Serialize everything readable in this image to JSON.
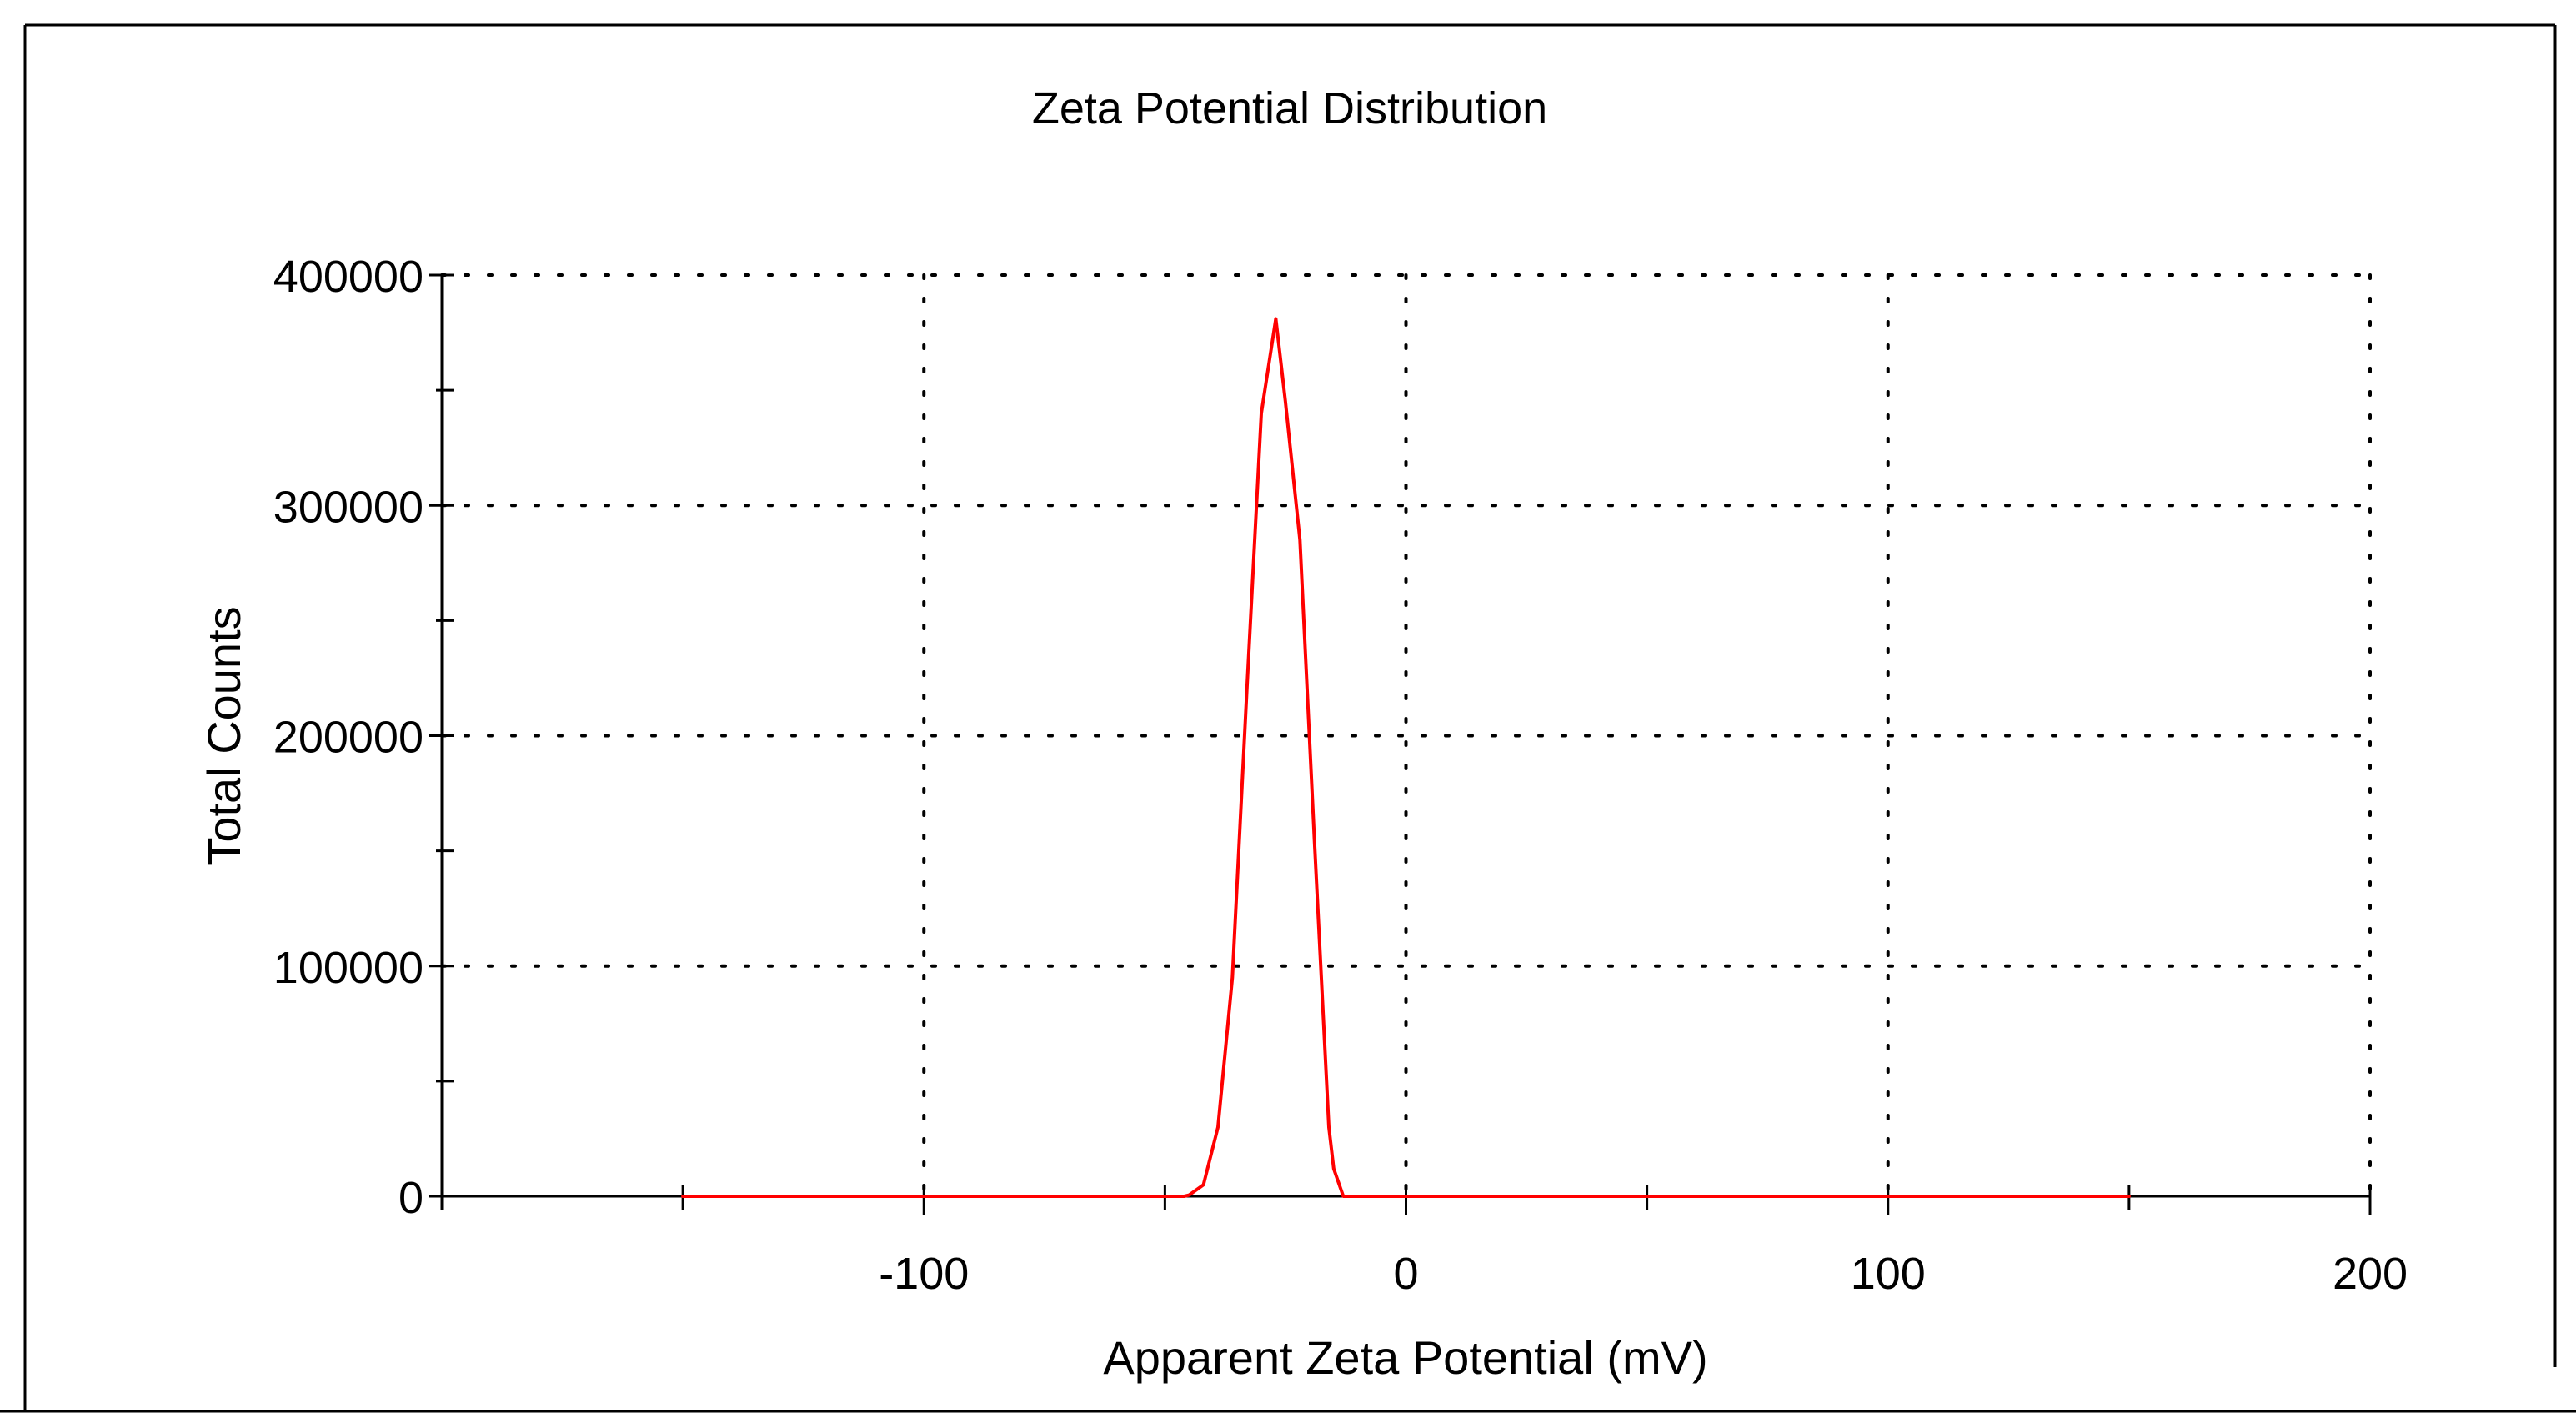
{
  "chart_data": {
    "type": "line",
    "title": "Zeta Potential Distribution",
    "xlabel": "Apparent Zeta Potential (mV)",
    "ylabel": "Total Counts",
    "xlim": [
      -200,
      200
    ],
    "ylim": [
      0,
      400000
    ],
    "x_ticks": [
      -100,
      0,
      100,
      200
    ],
    "x_tick_labels": [
      "-100",
      "0",
      "100",
      "200"
    ],
    "y_ticks": [
      0,
      100000,
      200000,
      300000,
      400000
    ],
    "y_tick_labels": [
      "0",
      "100000",
      "200000",
      "300000",
      "400000"
    ],
    "grid": true,
    "series": [
      {
        "name": "Zeta Potential Distribution",
        "color": "#ff0000",
        "x": [
          -150,
          -120,
          -90,
          -60,
          -46,
          -45,
          -42,
          -39,
          -36,
          -33,
          -30,
          -27,
          -25,
          -22,
          -19,
          -16,
          -15,
          -13,
          -10,
          0,
          50,
          100,
          150
        ],
        "y": [
          0,
          0,
          0,
          0,
          0,
          500,
          5000,
          30000,
          95000,
          220000,
          340000,
          381000,
          345000,
          285000,
          155000,
          30000,
          12000,
          0,
          0,
          0,
          0,
          0,
          0
        ]
      }
    ]
  }
}
